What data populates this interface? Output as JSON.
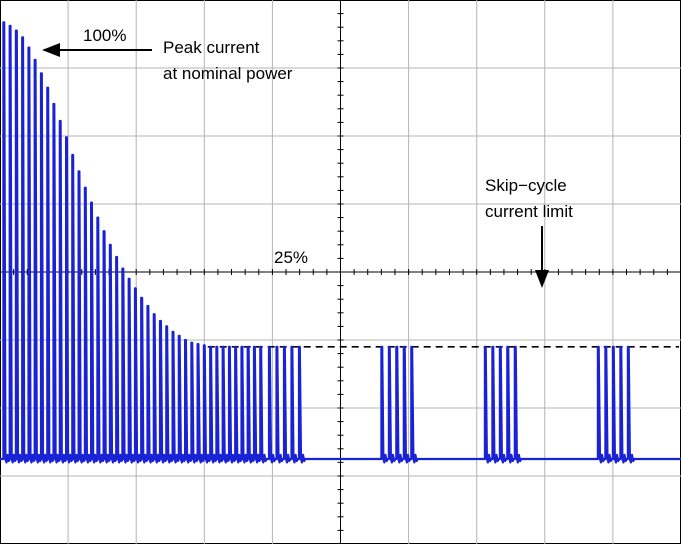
{
  "chart_data": {
    "type": "line",
    "title": "",
    "xlabel": "",
    "ylabel": "",
    "grid": true,
    "grid_divisions": {
      "x": 10,
      "y": 8
    },
    "trace_color": "#1a22d6",
    "baseline_level_div": 1.25,
    "nominal_peak_level_div": 7.67,
    "skip_limit_level_div": 2.9,
    "series": [
      {
        "pulse_bursts": [
          {
            "start_div": 0.05,
            "spacing_div": 0.092,
            "peaks_div": [
              7.67,
              7.62,
              7.55,
              7.45,
              7.3,
              7.12,
              6.92,
              6.71,
              6.47,
              6.22,
              5.98,
              5.72,
              5.48,
              5.24,
              5.02,
              4.8,
              4.6,
              4.4,
              4.22,
              4.05,
              3.9,
              3.76,
              3.62,
              3.5,
              3.38,
              3.28,
              3.2,
              3.12,
              3.06,
              3.0,
              2.96,
              2.94,
              2.92,
              2.9,
              2.9,
              2.9,
              2.9,
              2.9,
              2.9,
              2.9,
              2.9,
              2.9
            ]
          },
          {
            "start_div": 3.95,
            "spacing_div": 0.11,
            "peaks_div": [
              2.9,
              2.9,
              2.9,
              2.9,
              2.9
            ]
          },
          {
            "start_div": 5.6,
            "spacing_div": 0.11,
            "peaks_div": [
              2.9,
              2.9,
              2.9,
              2.9,
              2.9
            ]
          },
          {
            "start_div": 7.12,
            "spacing_div": 0.11,
            "peaks_div": [
              2.9,
              2.9,
              2.9,
              2.9,
              2.9
            ]
          },
          {
            "start_div": 8.78,
            "spacing_div": 0.11,
            "peaks_div": [
              2.9,
              2.9,
              2.9,
              2.9,
              2.9
            ]
          }
        ]
      }
    ],
    "annotations": {
      "peak_percent": "100%",
      "peak_text_line1": "Peak current",
      "peak_text_line2": "at nominal power",
      "limit_percent": "25%",
      "skip_text_line1": "Skip−cycle",
      "skip_text_line2": "current limit"
    }
  }
}
